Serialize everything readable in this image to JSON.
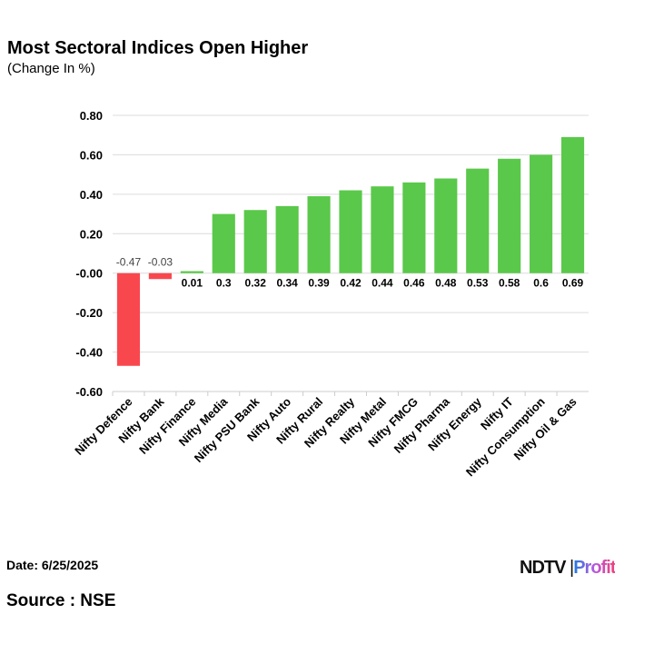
{
  "header": {
    "title": "Most Sectoral Indices Open Higher",
    "subtitle": "(Change In %)"
  },
  "footer": {
    "date": "Date: 6/25/2025",
    "source": "Source : NSE",
    "logo": "NDTV Profit"
  },
  "colors": {
    "positive": "#5ac84a",
    "negative": "#f8484e"
  },
  "chart_data": {
    "type": "bar",
    "title": "Most Sectoral Indices Open Higher",
    "ylabel": "(Change In %)",
    "ylim": [
      -0.6,
      0.8
    ],
    "yticks": [
      "0.80",
      "0.60",
      "0.40",
      "0.20",
      "-0.00",
      "-0.20",
      "-0.40",
      "-0.60"
    ],
    "grid": true,
    "categories": [
      "Nifty Defence",
      "Nifty Bank",
      "Nifty Finance",
      "Nifty Media",
      "Nifty PSU Bank",
      "Nifty Auto",
      "Nifty Rural",
      "Nifty Realty",
      "Nifty Metal",
      "Nifty FMCG",
      "Nifty Pharma",
      "Nifty Energy",
      "Nifty IT",
      "Nifty Consumption",
      "Nifty Oil & Gas"
    ],
    "values": [
      -0.47,
      -0.03,
      0.01,
      0.3,
      0.32,
      0.34,
      0.39,
      0.42,
      0.44,
      0.46,
      0.48,
      0.53,
      0.58,
      0.6,
      0.69
    ],
    "labels": [
      "-0.47",
      "-0.03",
      "0.01",
      "0.3",
      "0.32",
      "0.34",
      "0.39",
      "0.42",
      "0.44",
      "0.46",
      "0.48",
      "0.53",
      "0.58",
      "0.6",
      "0.69"
    ]
  }
}
